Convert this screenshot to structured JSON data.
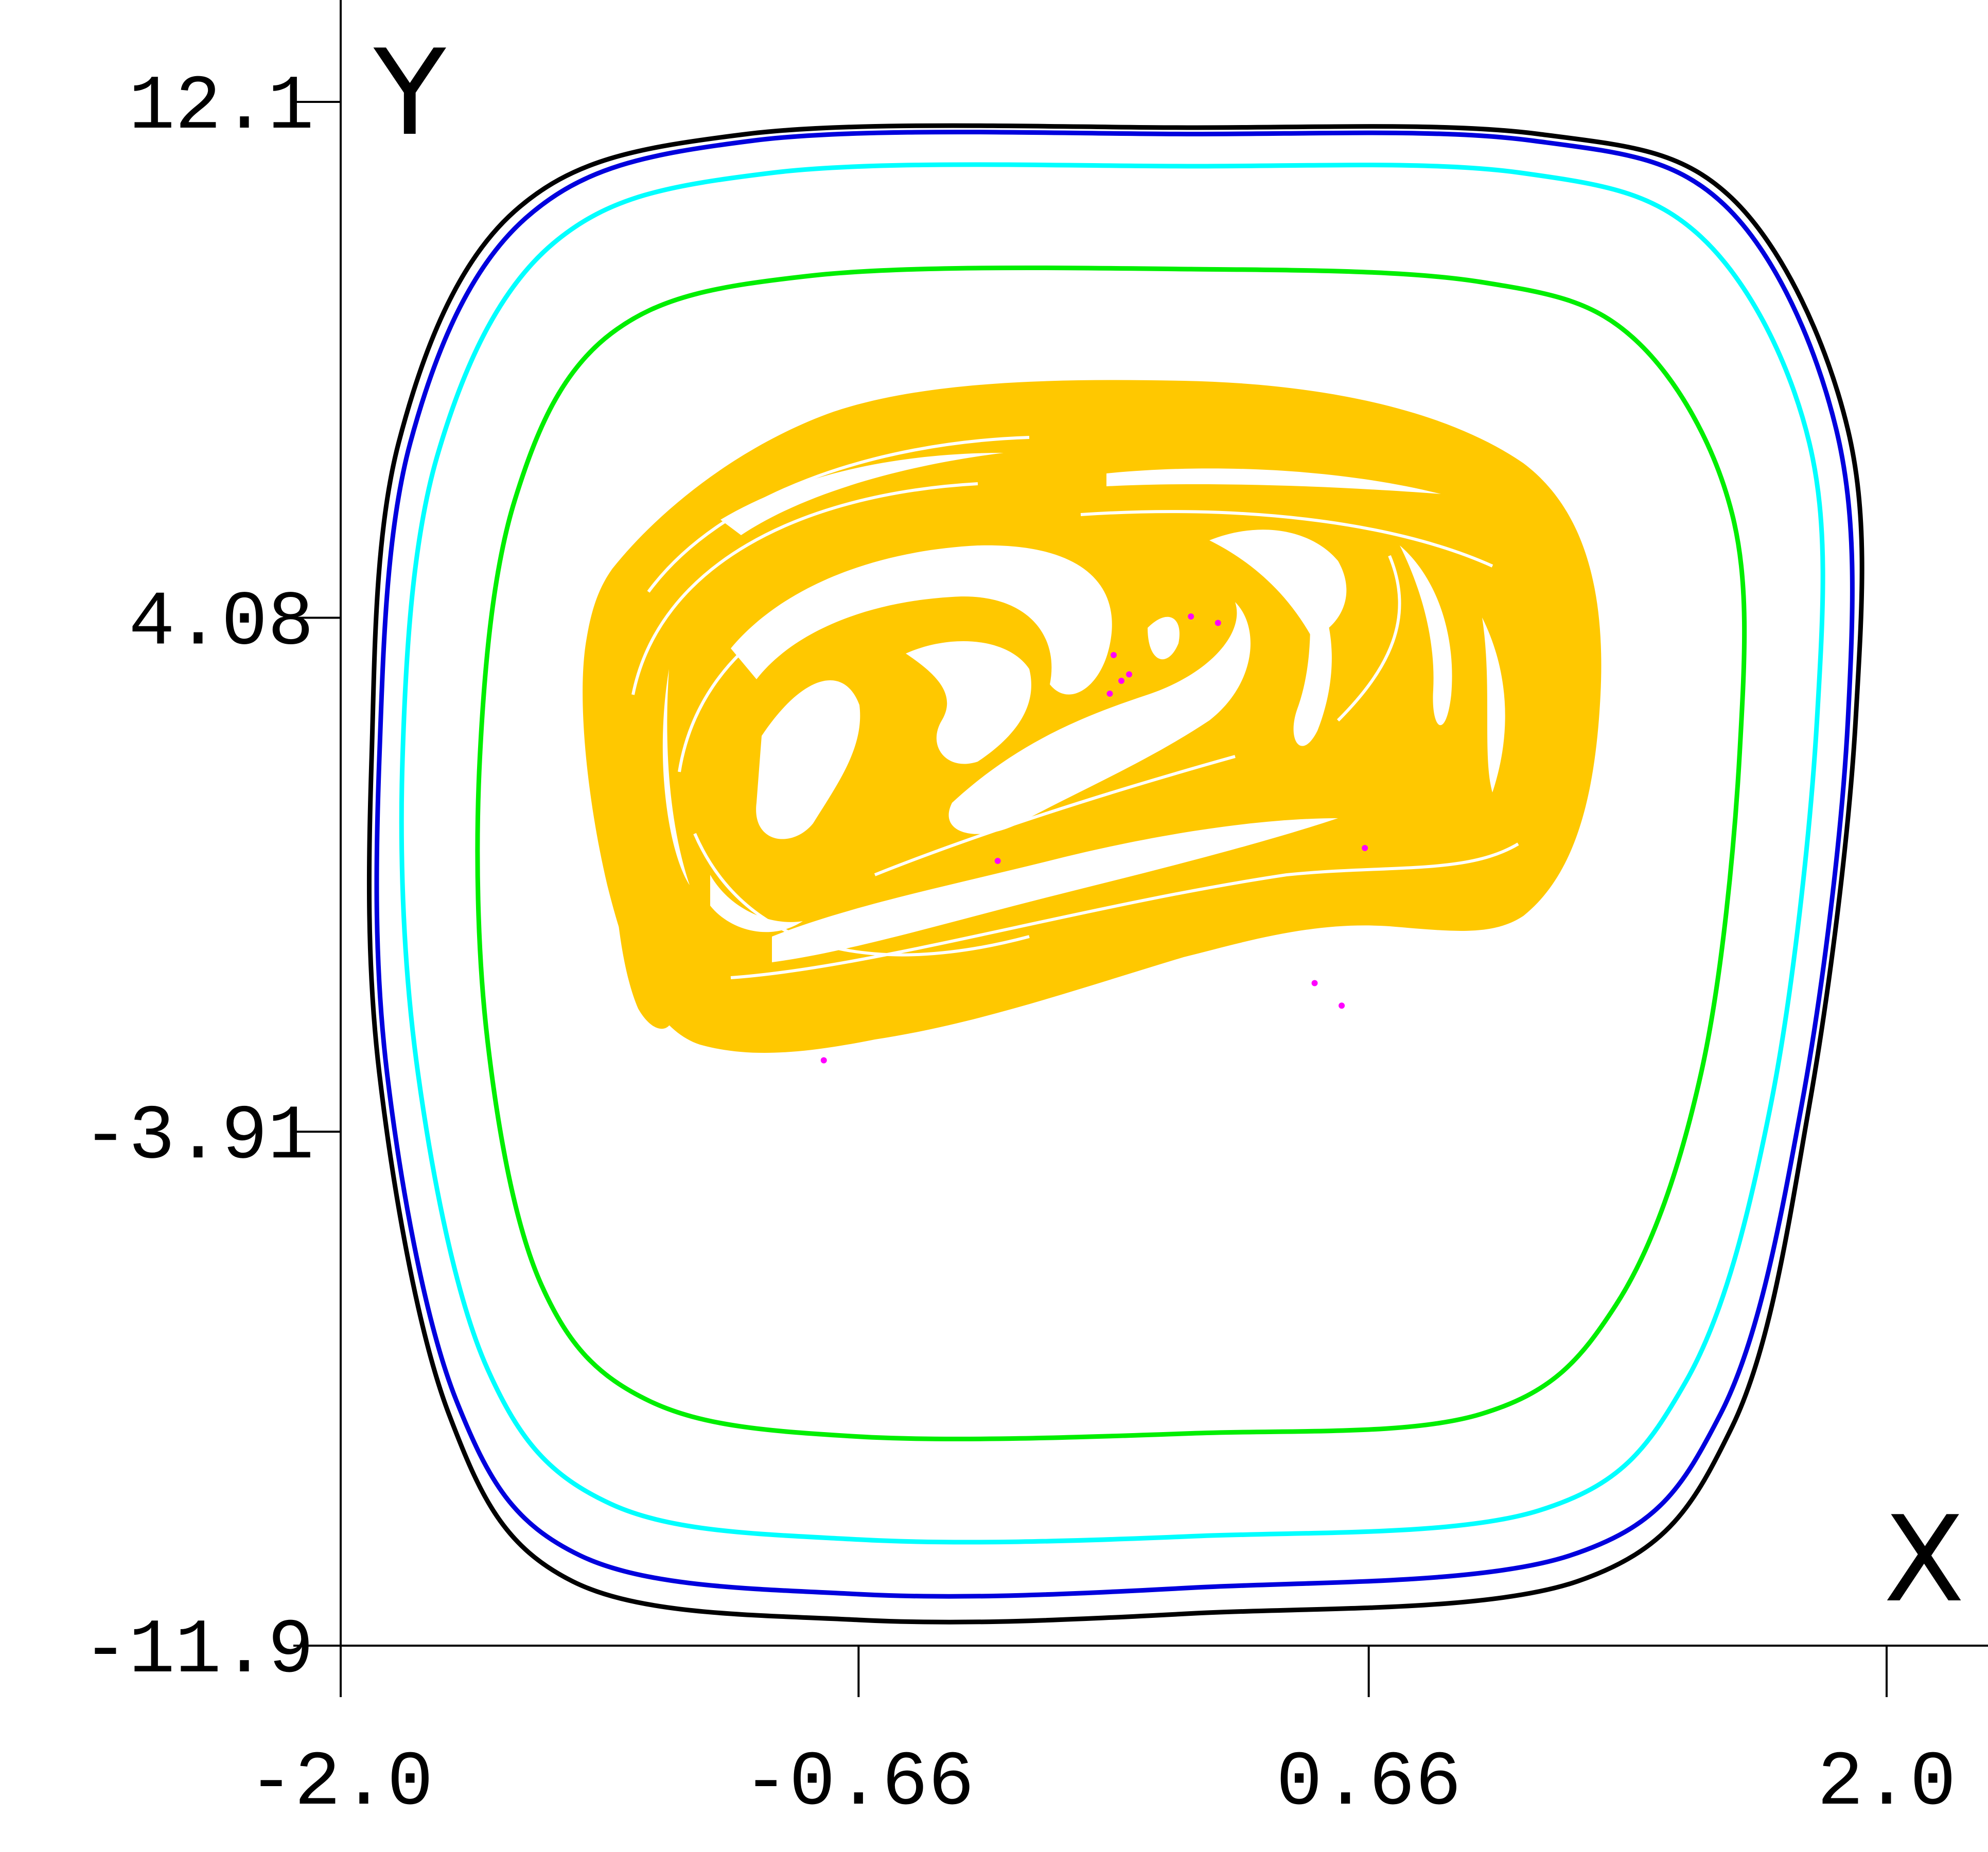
{
  "chart_data": {
    "type": "scatter",
    "xlabel": "X",
    "ylabel": "Y",
    "xlim": [
      -2.0,
      2.1
    ],
    "ylim": [
      -11.9,
      13.8
    ],
    "x_ticks": [
      {
        "value": -2.0,
        "label": "-2.0"
      },
      {
        "value": -0.66,
        "label": "-0.66"
      },
      {
        "value": 0.66,
        "label": "0.66"
      },
      {
        "value": 2.0,
        "label": "2.0"
      }
    ],
    "y_ticks": [
      {
        "value": 12.1,
        "label": "12.1"
      },
      {
        "value": 4.08,
        "label": "4.08"
      },
      {
        "value": -3.91,
        "label": "-3.91"
      },
      {
        "value": -11.9,
        "label": "-11.9"
      }
    ],
    "grid": false,
    "legend": "none",
    "series": [
      {
        "kind": "curve",
        "color": "#000000",
        "points": [
          [
            -1.92,
            1.9
          ],
          [
            -1.85,
            6.8
          ],
          [
            -1.55,
            10.4
          ],
          [
            -0.95,
            11.6
          ],
          [
            0.2,
            11.7
          ],
          [
            1.1,
            11.6
          ],
          [
            1.6,
            10.6
          ],
          [
            1.9,
            7.0
          ],
          [
            1.92,
            2.5
          ],
          [
            1.8,
            -3.5
          ],
          [
            1.6,
            -8.5
          ],
          [
            1.2,
            -10.9
          ],
          [
            0.2,
            -11.4
          ],
          [
            -0.66,
            -11.5
          ],
          [
            -1.4,
            -10.9
          ],
          [
            -1.72,
            -8.3
          ],
          [
            -1.9,
            -3.0
          ]
        ]
      },
      {
        "kind": "curve",
        "color": "#0000dd",
        "points": [
          [
            -1.9,
            1.9
          ],
          [
            -1.82,
            6.8
          ],
          [
            -1.52,
            10.3
          ],
          [
            -0.93,
            11.5
          ],
          [
            0.2,
            11.6
          ],
          [
            1.08,
            11.5
          ],
          [
            1.58,
            10.5
          ],
          [
            1.87,
            7.0
          ],
          [
            1.9,
            2.5
          ],
          [
            1.78,
            -3.5
          ],
          [
            1.57,
            -8.3
          ],
          [
            1.18,
            -10.5
          ],
          [
            0.2,
            -11.0
          ],
          [
            -0.66,
            -11.1
          ],
          [
            -1.38,
            -10.5
          ],
          [
            -1.7,
            -8.1
          ],
          [
            -1.88,
            -3.0
          ]
        ]
      },
      {
        "kind": "curve",
        "color": "#00ffff",
        "points": [
          [
            -1.84,
            1.9
          ],
          [
            -1.75,
            6.6
          ],
          [
            -1.45,
            9.9
          ],
          [
            -0.88,
            11.0
          ],
          [
            0.2,
            11.1
          ],
          [
            1.05,
            11.0
          ],
          [
            1.52,
            10.0
          ],
          [
            1.8,
            6.8
          ],
          [
            1.82,
            2.5
          ],
          [
            1.7,
            -3.5
          ],
          [
            1.48,
            -7.8
          ],
          [
            1.1,
            -9.8
          ],
          [
            0.2,
            -10.2
          ],
          [
            -0.66,
            -10.25
          ],
          [
            -1.3,
            -9.7
          ],
          [
            -1.62,
            -7.6
          ],
          [
            -1.8,
            -3.0
          ]
        ]
      },
      {
        "kind": "curve",
        "color": "#00ee00",
        "points": [
          [
            -1.64,
            1.9
          ],
          [
            -1.55,
            5.9
          ],
          [
            -1.3,
            8.5
          ],
          [
            -0.78,
            9.4
          ],
          [
            0.2,
            9.5
          ],
          [
            0.95,
            9.3
          ],
          [
            1.35,
            8.4
          ],
          [
            1.6,
            5.7
          ],
          [
            1.62,
            2.0
          ],
          [
            1.52,
            -3.0
          ],
          [
            1.3,
            -6.6
          ],
          [
            0.95,
            -8.3
          ],
          [
            0.2,
            -8.6
          ],
          [
            -0.66,
            -8.65
          ],
          [
            -1.2,
            -8.1
          ],
          [
            -1.48,
            -6.3
          ],
          [
            -1.62,
            -2.5
          ]
        ]
      },
      {
        "kind": "scatter-region",
        "color": "#ffc800"
      },
      {
        "kind": "scatter",
        "color": "#ff00ff",
        "points": [
          [
            -0.75,
            -2.8
          ],
          [
            0.2,
            4.1
          ],
          [
            0.27,
            4.0
          ],
          [
            0.0,
            3.5
          ],
          [
            -0.01,
            2.9
          ],
          [
            0.02,
            3.1
          ],
          [
            0.04,
            3.2
          ],
          [
            -0.3,
            0.3
          ],
          [
            0.52,
            -1.6
          ],
          [
            0.59,
            -1.95
          ],
          [
            0.65,
            0.5
          ]
        ]
      }
    ]
  }
}
